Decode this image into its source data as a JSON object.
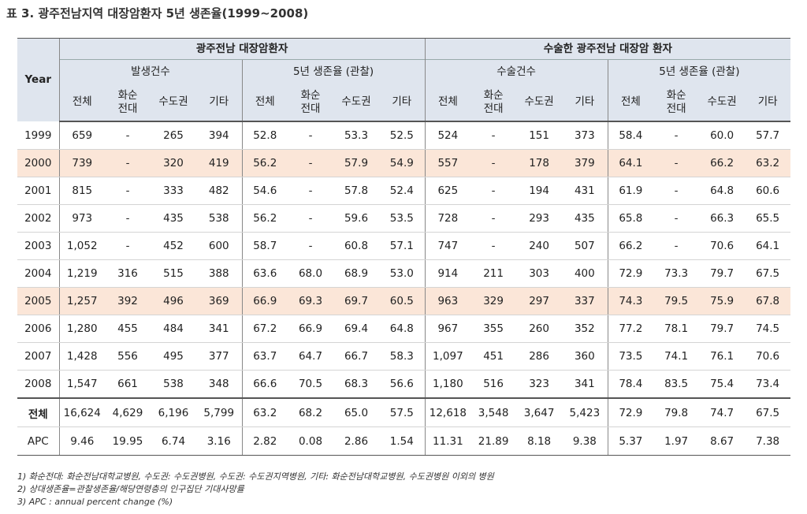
{
  "title": "표 3. 광주전남지역 대장암환자 5년 생존율(1999~2008)",
  "table": {
    "header": {
      "year": "Year",
      "groups": [
        {
          "label": "광주전남 대장암환자",
          "subgroups": [
            {
              "label": "발생건수",
              "columns": [
                "전체",
                "화순\n전대",
                "수도권",
                "기타"
              ]
            },
            {
              "label": "5년 생존율 (관찰)",
              "columns": [
                "전체",
                "화순\n전대",
                "수도권",
                "기타"
              ]
            }
          ]
        },
        {
          "label": "수술한 광주전남 대장암 환자",
          "subgroups": [
            {
              "label": "수술건수",
              "columns": [
                "전체",
                "화순\n전대",
                "수도권",
                "기타"
              ]
            },
            {
              "label": "5년 생존율 (관찰)",
              "columns": [
                "전체",
                "화순\n전대",
                "수도권",
                "기타"
              ]
            }
          ]
        }
      ]
    },
    "rows": [
      [
        "1999",
        "659",
        "-",
        "265",
        "394",
        "52.8",
        "-",
        "53.3",
        "52.5",
        "524",
        "-",
        "151",
        "373",
        "58.4",
        "-",
        "60.0",
        "57.7"
      ],
      [
        "2000",
        "739",
        "-",
        "320",
        "419",
        "56.2",
        "-",
        "57.9",
        "54.9",
        "557",
        "-",
        "178",
        "379",
        "64.1",
        "-",
        "66.2",
        "63.2"
      ],
      [
        "2001",
        "815",
        "-",
        "333",
        "482",
        "54.6",
        "-",
        "57.8",
        "52.4",
        "625",
        "-",
        "194",
        "431",
        "61.9",
        "-",
        "64.8",
        "60.6"
      ],
      [
        "2002",
        "973",
        "-",
        "435",
        "538",
        "56.2",
        "-",
        "59.6",
        "53.5",
        "728",
        "-",
        "293",
        "435",
        "65.8",
        "-",
        "66.3",
        "65.5"
      ],
      [
        "2003",
        "1,052",
        "-",
        "452",
        "600",
        "58.7",
        "-",
        "60.8",
        "57.1",
        "747",
        "-",
        "240",
        "507",
        "66.2",
        "-",
        "70.6",
        "64.1"
      ],
      [
        "2004",
        "1,219",
        "316",
        "515",
        "388",
        "63.6",
        "68.0",
        "68.9",
        "53.0",
        "914",
        "211",
        "303",
        "400",
        "72.9",
        "73.3",
        "79.7",
        "67.5"
      ],
      [
        "2005",
        "1,257",
        "392",
        "496",
        "369",
        "66.9",
        "69.3",
        "69.7",
        "60.5",
        "963",
        "329",
        "297",
        "337",
        "74.3",
        "79.5",
        "75.9",
        "67.8"
      ],
      [
        "2006",
        "1,280",
        "455",
        "484",
        "341",
        "67.2",
        "66.9",
        "69.4",
        "64.8",
        "967",
        "355",
        "260",
        "352",
        "77.2",
        "78.1",
        "79.7",
        "74.5"
      ],
      [
        "2007",
        "1,428",
        "556",
        "495",
        "377",
        "63.7",
        "64.7",
        "66.7",
        "58.3",
        "1,097",
        "451",
        "286",
        "360",
        "73.5",
        "74.1",
        "76.1",
        "70.6"
      ],
      [
        "2008",
        "1,547",
        "661",
        "538",
        "348",
        "66.6",
        "70.5",
        "68.3",
        "56.6",
        "1,180",
        "516",
        "323",
        "341",
        "78.4",
        "83.5",
        "75.4",
        "73.4"
      ],
      [
        "전체",
        "16,624",
        "4,629",
        "6,196",
        "5,799",
        "63.2",
        "68.2",
        "65.0",
        "57.5",
        "12,618",
        "3,548",
        "3,647",
        "5,423",
        "72.9",
        "79.8",
        "74.7",
        "67.5"
      ],
      [
        "APC",
        "9.46",
        "19.95",
        "6.74",
        "3.16",
        "2.82",
        "0.08",
        "2.86",
        "1.54",
        "11.31",
        "21.89",
        "8.18",
        "9.38",
        "5.37",
        "1.97",
        "8.67",
        "7.38"
      ]
    ]
  },
  "notes": [
    "1) 화순전대: 화순전남대학교병원, 수도권: 수도권병원, 수도권: 수도권지역병원, 기타: 화순전남대학교병원, 수도권병원 이외의 병원",
    "2) 상대생존율=관찰생존율/해당연령층의 인구집단 기대사망률",
    "3) APC : annual percent change (%)"
  ]
}
